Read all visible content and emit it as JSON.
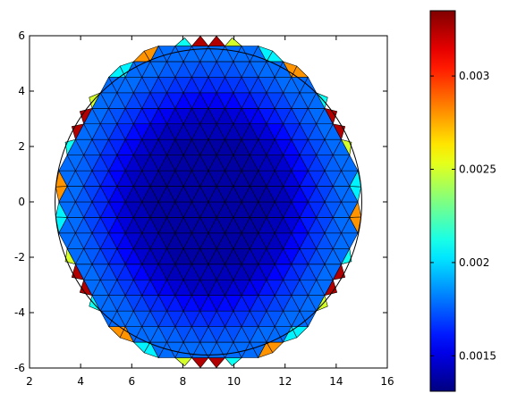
{
  "chart_data": {
    "type": "heatmap",
    "title": "",
    "xlabel": "",
    "ylabel": "",
    "xlim": [
      2,
      16
    ],
    "ylim": [
      -6,
      6
    ],
    "x_ticks": [
      "2",
      "4",
      "6",
      "8",
      "10",
      "12",
      "14",
      "16"
    ],
    "y_ticks": [
      "6",
      "4",
      "2",
      "0",
      "-2",
      "-4",
      "-6"
    ],
    "domain": {
      "shape": "disk",
      "center": [
        9,
        0
      ],
      "radius": 6
    },
    "mesh": {
      "element": "triangle",
      "edge_length": 0.65
    },
    "colormap": "jet",
    "clim": [
      0.00131,
      0.00335
    ],
    "colorbar_ticks": [
      "0.003",
      "0.0025",
      "0.002",
      "0.0015"
    ],
    "colorbar_tick_values": [
      0.003,
      0.0025,
      0.002,
      0.0015
    ],
    "field": {
      "description_units": "value by distance from center",
      "inner_hexagon_radius": 2.6,
      "profile": [
        {
          "r": 0.0,
          "value": 0.00138
        },
        {
          "r": 3.0,
          "value": 0.00143
        },
        {
          "r": 4.0,
          "value": 0.00162
        },
        {
          "r": 5.2,
          "value": 0.00178
        }
      ],
      "boundary_cycle": [
        {
          "angle_deg": 0,
          "value": 0.00205
        },
        {
          "angle_deg": 15,
          "value": 0.0025
        },
        {
          "angle_deg": 30,
          "value": 0.00325
        },
        {
          "angle_deg": 45,
          "value": 0.0021
        },
        {
          "angle_deg": 60,
          "value": 0.0028
        }
      ]
    }
  }
}
